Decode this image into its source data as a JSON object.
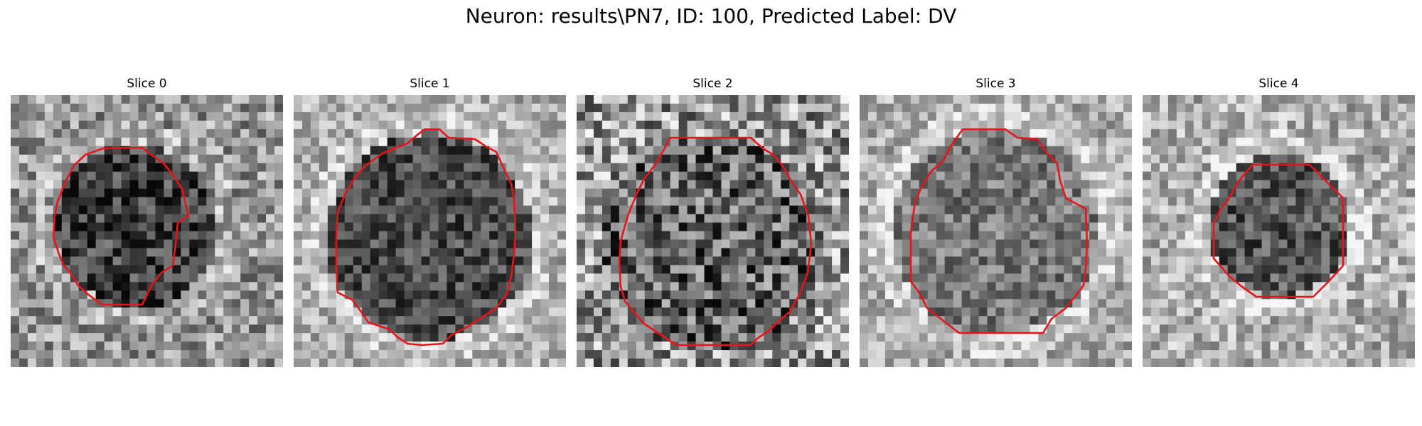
{
  "title": "Neuron: results\\PN7, ID: 100, Predicted Label: DV",
  "contour_color": "#e8141a",
  "panels": [
    {
      "label": "Slice 0"
    },
    {
      "label": "Slice 1"
    },
    {
      "label": "Slice 2"
    },
    {
      "label": "Slice 3"
    },
    {
      "label": "Slice 4"
    }
  ]
}
